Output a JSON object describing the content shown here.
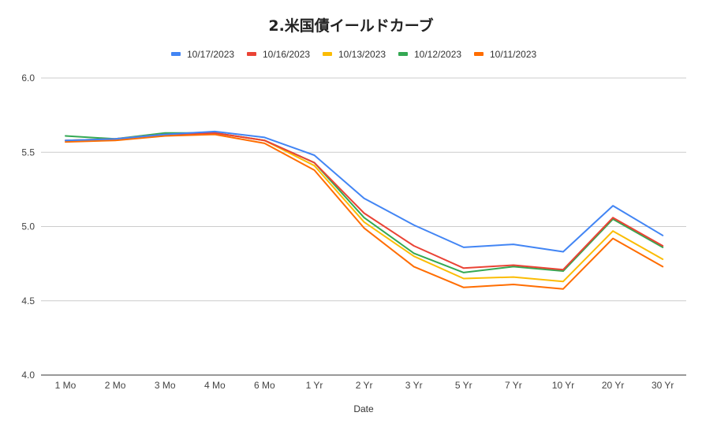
{
  "chart_data": {
    "type": "line",
    "title": "2.米国債イールドカーブ",
    "xlabel": "Date",
    "ylabel": "",
    "categories": [
      "1 Mo",
      "2 Mo",
      "3 Mo",
      "4 Mo",
      "6 Mo",
      "1 Yr",
      "2 Yr",
      "3 Yr",
      "5 Yr",
      "7 Yr",
      "10 Yr",
      "20 Yr",
      "30 Yr"
    ],
    "ylim": [
      4.0,
      6.0
    ],
    "yticks": [
      "4.0",
      "4.5",
      "5.0",
      "5.5",
      "6.0"
    ],
    "grid": true,
    "legend_position": "top",
    "series": [
      {
        "name": "10/17/2023",
        "color": "#4285f4",
        "values": [
          5.58,
          5.59,
          5.62,
          5.64,
          5.6,
          5.48,
          5.19,
          5.01,
          4.86,
          4.88,
          4.83,
          5.14,
          4.94
        ]
      },
      {
        "name": "10/16/2023",
        "color": "#ea4335",
        "values": [
          5.58,
          5.59,
          5.62,
          5.63,
          5.58,
          5.43,
          5.09,
          4.87,
          4.72,
          4.74,
          4.71,
          5.06,
          4.87
        ]
      },
      {
        "name": "10/13/2023",
        "color": "#fbbc04",
        "values": [
          5.58,
          5.59,
          5.62,
          5.63,
          5.58,
          5.41,
          5.03,
          4.8,
          4.65,
          4.66,
          4.63,
          4.97,
          4.78
        ]
      },
      {
        "name": "10/12/2023",
        "color": "#34a853",
        "values": [
          5.61,
          5.59,
          5.63,
          5.63,
          5.58,
          5.43,
          5.06,
          4.82,
          4.69,
          4.73,
          4.7,
          5.05,
          4.86
        ]
      },
      {
        "name": "10/11/2023",
        "color": "#ff6d01",
        "values": [
          5.57,
          5.58,
          5.61,
          5.62,
          5.56,
          5.38,
          4.99,
          4.73,
          4.59,
          4.61,
          4.58,
          4.92,
          4.73
        ]
      }
    ]
  }
}
